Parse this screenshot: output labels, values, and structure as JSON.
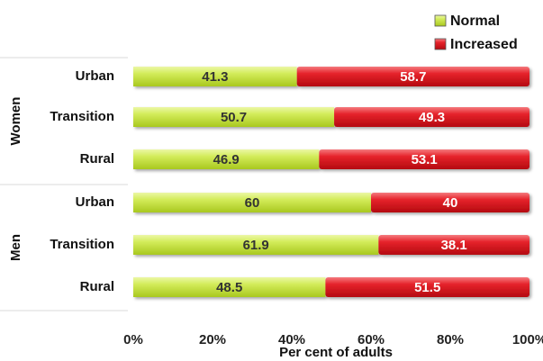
{
  "chart_data": {
    "type": "bar",
    "orientation": "horizontal",
    "stacked": true,
    "groups": [
      {
        "name": "Women",
        "categories": [
          "Urban",
          "Transition",
          "Rural"
        ]
      },
      {
        "name": "Men",
        "categories": [
          "Urban",
          "Transition",
          "Rural"
        ]
      }
    ],
    "series": [
      {
        "name": "Normal",
        "color": "#c4e23a",
        "values": [
          41.3,
          50.7,
          46.9,
          60,
          61.9,
          48.5
        ],
        "labels": [
          "41.3",
          "50.7",
          "46.9",
          "60",
          "61.9",
          "48.5"
        ]
      },
      {
        "name": "Increased",
        "color": "#e0141c",
        "values": [
          58.7,
          49.3,
          53.1,
          40,
          38.1,
          51.5
        ],
        "labels": [
          "58.7",
          "49.3",
          "53.1",
          "40",
          "38.1",
          "51.5"
        ]
      }
    ],
    "xlabel": "Per cent of adults",
    "ylabel": "",
    "xlim": [
      0,
      100
    ],
    "xticks": [
      "0%",
      "20%",
      "40%",
      "60%",
      "80%",
      "100%"
    ],
    "legend_position": "top-right",
    "grid": false
  }
}
